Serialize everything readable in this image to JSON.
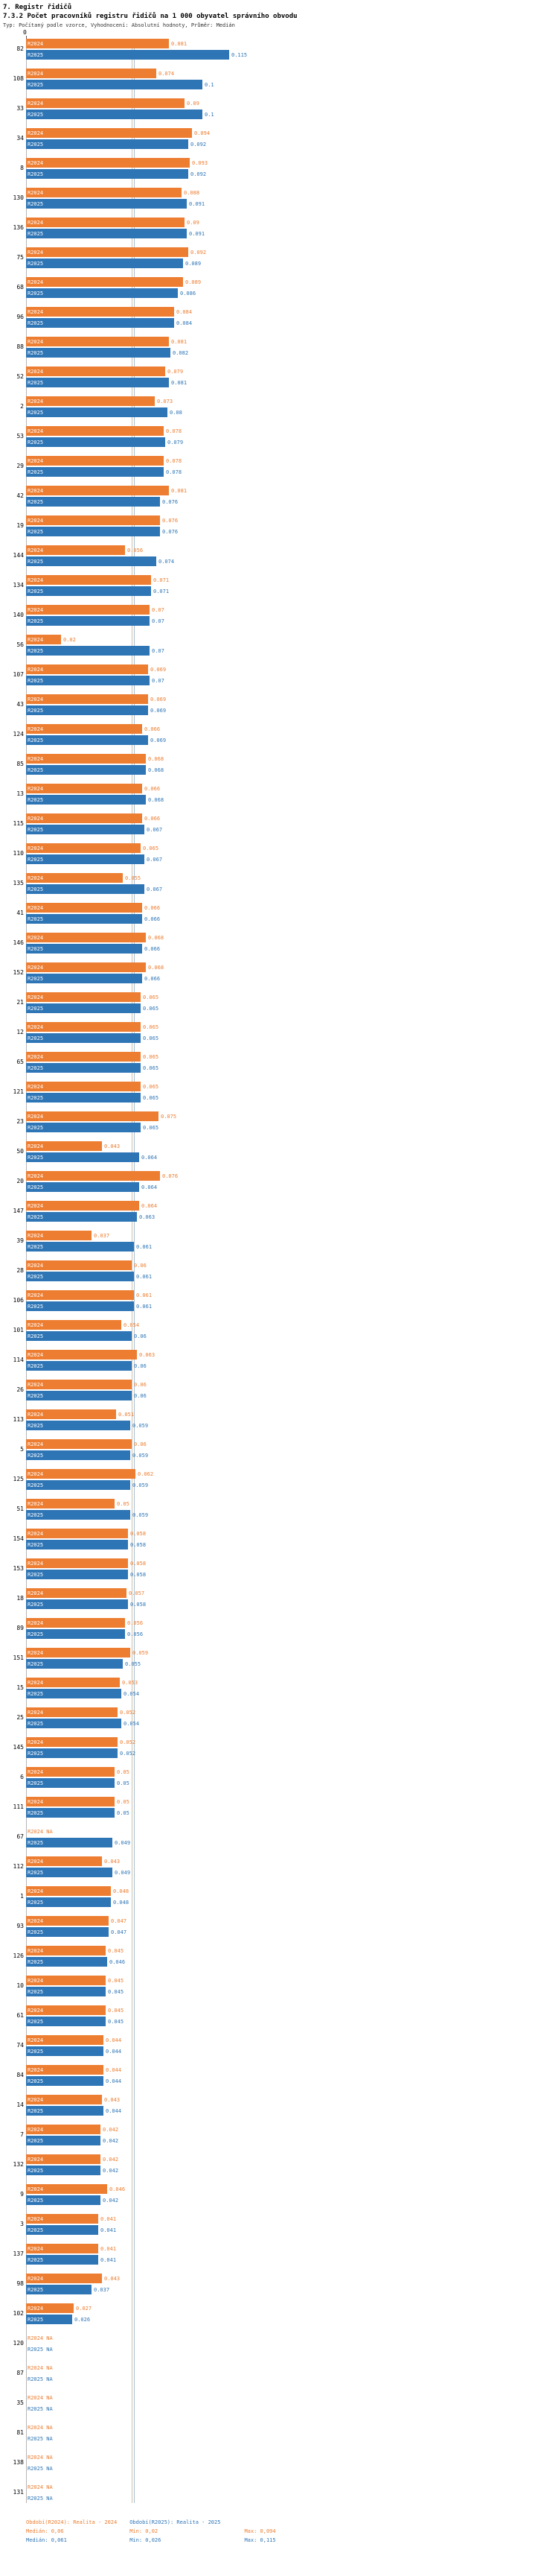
{
  "header": {
    "section": "7. Registr řidičů",
    "title": "7.3.2 Počet pracovníků registru řidičů na 1 000 obyvatel správního obvodu",
    "subtitle": "Typ: Počítaný podle vzorce, Vyhodnocení: Absolutní hodnoty, Průměr: Medián"
  },
  "axis": {
    "zero_label": "0"
  },
  "chart_data": {
    "type": "bar",
    "orientation": "horizontal",
    "title": "7.3.2 Počet pracovníků registru řidičů na 1 000 obyvatel správního obvodu",
    "series_names": [
      "R2024",
      "R2025"
    ],
    "colors": {
      "R2024": "#ED7D31",
      "R2025": "#2E75B6"
    },
    "xlim": [
      0,
      0.12
    ],
    "sorted_by": "R2025 descending",
    "median_R2024": 0.06,
    "median_R2025": 0.061,
    "min_R2024": 0.02,
    "min_R2025": 0.026,
    "max_R2024": 0.094,
    "max_R2025": 0.115,
    "rows": [
      {
        "id": "82",
        "R2024": 0.081,
        "R2025": 0.115
      },
      {
        "id": "108",
        "R2024": 0.074,
        "R2025": 0.1
      },
      {
        "id": "33",
        "R2024": 0.09,
        "R2025": 0.1
      },
      {
        "id": "34",
        "R2024": 0.094,
        "R2025": 0.092
      },
      {
        "id": "8",
        "R2024": 0.093,
        "R2025": 0.092
      },
      {
        "id": "130",
        "R2024": 0.088,
        "R2025": 0.091
      },
      {
        "id": "136",
        "R2024": 0.09,
        "R2025": 0.091
      },
      {
        "id": "75",
        "R2024": 0.092,
        "R2025": 0.089
      },
      {
        "id": "68",
        "R2024": 0.089,
        "R2025": 0.086
      },
      {
        "id": "96",
        "R2024": 0.084,
        "R2025": 0.084
      },
      {
        "id": "88",
        "R2024": 0.081,
        "R2025": 0.082
      },
      {
        "id": "52",
        "R2024": 0.079,
        "R2025": 0.081
      },
      {
        "id": "2",
        "R2024": 0.073,
        "R2025": 0.08
      },
      {
        "id": "53",
        "R2024": 0.078,
        "R2025": 0.079
      },
      {
        "id": "29",
        "R2024": 0.078,
        "R2025": 0.078
      },
      {
        "id": "42",
        "R2024": 0.081,
        "R2025": 0.076
      },
      {
        "id": "19",
        "R2024": 0.076,
        "R2025": 0.076
      },
      {
        "id": "144",
        "R2024": 0.056,
        "R2025": 0.074
      },
      {
        "id": "134",
        "R2024": 0.071,
        "R2025": 0.071
      },
      {
        "id": "140",
        "R2024": 0.07,
        "R2025": 0.07
      },
      {
        "id": "56",
        "R2024": 0.02,
        "R2025": 0.07
      },
      {
        "id": "107",
        "R2024": 0.069,
        "R2025": 0.07
      },
      {
        "id": "43",
        "R2024": 0.069,
        "R2025": 0.069
      },
      {
        "id": "124",
        "R2024": 0.066,
        "R2025": 0.069
      },
      {
        "id": "85",
        "R2024": 0.068,
        "R2025": 0.068
      },
      {
        "id": "13",
        "R2024": 0.066,
        "R2025": 0.068
      },
      {
        "id": "115",
        "R2024": 0.066,
        "R2025": 0.067
      },
      {
        "id": "110",
        "R2024": 0.065,
        "R2025": 0.067
      },
      {
        "id": "135",
        "R2024": 0.055,
        "R2025": 0.067
      },
      {
        "id": "41",
        "R2024": 0.066,
        "R2025": 0.066
      },
      {
        "id": "146",
        "R2024": 0.068,
        "R2025": 0.066
      },
      {
        "id": "152",
        "R2024": 0.068,
        "R2025": 0.066
      },
      {
        "id": "21",
        "R2024": 0.065,
        "R2025": 0.065
      },
      {
        "id": "12",
        "R2024": 0.065,
        "R2025": 0.065
      },
      {
        "id": "65",
        "R2024": 0.065,
        "R2025": 0.065
      },
      {
        "id": "121",
        "R2024": 0.065,
        "R2025": 0.065
      },
      {
        "id": "23",
        "R2024": 0.075,
        "R2025": 0.065
      },
      {
        "id": "50",
        "R2024": 0.043,
        "R2025": 0.064
      },
      {
        "id": "20",
        "R2024": 0.076,
        "R2025": 0.064
      },
      {
        "id": "147",
        "R2024": 0.064,
        "R2025": 0.063
      },
      {
        "id": "39",
        "R2024": 0.037,
        "R2025": 0.061
      },
      {
        "id": "28",
        "R2024": 0.06,
        "R2025": 0.061
      },
      {
        "id": "106",
        "R2024": 0.061,
        "R2025": 0.061
      },
      {
        "id": "101",
        "R2024": 0.054,
        "R2025": 0.06
      },
      {
        "id": "114",
        "R2024": 0.063,
        "R2025": 0.06
      },
      {
        "id": "26",
        "R2024": 0.06,
        "R2025": 0.06
      },
      {
        "id": "113",
        "R2024": 0.051,
        "R2025": 0.059
      },
      {
        "id": "5",
        "R2024": 0.06,
        "R2025": 0.059
      },
      {
        "id": "125",
        "R2024": 0.062,
        "R2025": 0.059
      },
      {
        "id": "51",
        "R2024": 0.05,
        "R2025": 0.059
      },
      {
        "id": "154",
        "R2024": 0.058,
        "R2025": 0.058
      },
      {
        "id": "153",
        "R2024": 0.058,
        "R2025": 0.058
      },
      {
        "id": "18",
        "R2024": 0.057,
        "R2025": 0.058
      },
      {
        "id": "89",
        "R2024": 0.056,
        "R2025": 0.056
      },
      {
        "id": "151",
        "R2024": 0.059,
        "R2025": 0.055
      },
      {
        "id": "15",
        "R2024": 0.053,
        "R2025": 0.054
      },
      {
        "id": "25",
        "R2024": 0.052,
        "R2025": 0.054
      },
      {
        "id": "145",
        "R2024": 0.052,
        "R2025": 0.052
      },
      {
        "id": "6",
        "R2024": 0.05,
        "R2025": 0.05
      },
      {
        "id": "111",
        "R2024": 0.05,
        "R2025": 0.05
      },
      {
        "id": "67",
        "R2024": null,
        "R2025": 0.049
      },
      {
        "id": "112",
        "R2024": 0.043,
        "R2025": 0.049
      },
      {
        "id": "1",
        "R2024": 0.048,
        "R2025": 0.048
      },
      {
        "id": "93",
        "R2024": 0.047,
        "R2025": 0.047
      },
      {
        "id": "126",
        "R2024": 0.045,
        "R2025": 0.046
      },
      {
        "id": "10",
        "R2024": 0.045,
        "R2025": 0.045
      },
      {
        "id": "61",
        "R2024": 0.045,
        "R2025": 0.045
      },
      {
        "id": "74",
        "R2024": 0.044,
        "R2025": 0.044
      },
      {
        "id": "84",
        "R2024": 0.044,
        "R2025": 0.044
      },
      {
        "id": "14",
        "R2024": 0.043,
        "R2025": 0.044
      },
      {
        "id": "7",
        "R2024": 0.042,
        "R2025": 0.042
      },
      {
        "id": "132",
        "R2024": 0.042,
        "R2025": 0.042
      },
      {
        "id": "9",
        "R2024": 0.046,
        "R2025": 0.042
      },
      {
        "id": "3",
        "R2024": 0.041,
        "R2025": 0.041
      },
      {
        "id": "137",
        "R2024": 0.041,
        "R2025": 0.041
      },
      {
        "id": "98",
        "R2024": 0.043,
        "R2025": 0.037
      },
      {
        "id": "102",
        "R2024": 0.027,
        "R2025": 0.026
      },
      {
        "id": "120",
        "R2024": null,
        "R2025": null
      },
      {
        "id": "87",
        "R2024": null,
        "R2025": null
      },
      {
        "id": "35",
        "R2024": null,
        "R2025": null
      },
      {
        "id": "81",
        "R2024": null,
        "R2025": null
      },
      {
        "id": "138",
        "R2024": null,
        "R2025": null
      },
      {
        "id": "131",
        "R2024": null,
        "R2025": null
      }
    ],
    "na_label": "NA"
  },
  "footer": {
    "period_2024": "Období(R2024): Realita - 2024",
    "period_2025": "Období(R2025): Realita - 2025",
    "median_2024_label": "Medián: 0,06",
    "min_2024_label": "Min: 0,02",
    "max_2024_label": "Max: 0,094",
    "median_2025_label": "Medián: 0,061",
    "min_2025_label": "Min: 0,026",
    "max_2025_label": "Max: 0,115"
  }
}
